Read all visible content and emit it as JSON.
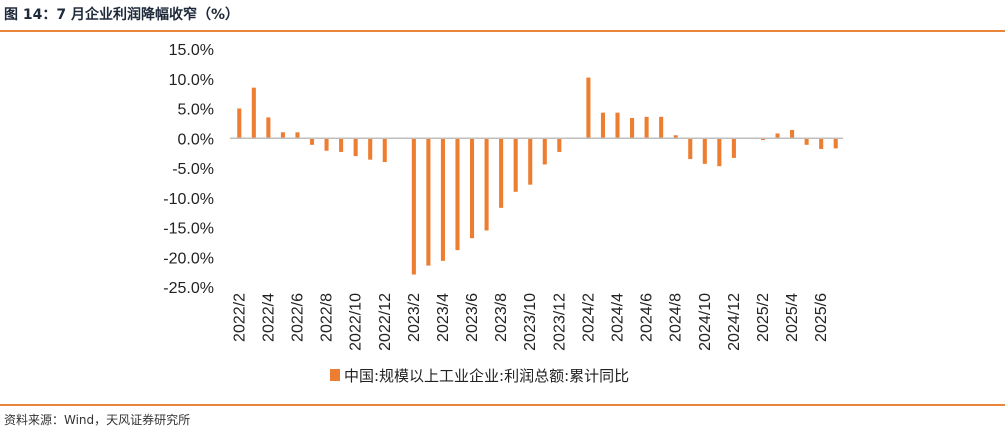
{
  "header": {
    "title": "图 14：7 月企业利润降幅收窄（%）"
  },
  "footer": {
    "source": "资料来源：Wind，天风证券研究所"
  },
  "colors": {
    "accent": "#e9853b",
    "bar": "#ed7d31",
    "axis": "#bfbfbf"
  },
  "chart_data": {
    "type": "bar",
    "title": "",
    "xlabel": "",
    "ylabel": "",
    "ylim": [
      -25,
      15
    ],
    "yticks": [
      15,
      10,
      5,
      0,
      -5,
      -10,
      -15,
      -20,
      -25
    ],
    "ytick_labels": [
      "15.0%",
      "10.0%",
      "5.0%",
      "0.0%",
      "-5.0%",
      "-10.0%",
      "-15.0%",
      "-20.0%",
      "-25.0%"
    ],
    "categories": [
      "2022/2",
      "2022/3",
      "2022/4",
      "2022/5",
      "2022/6",
      "2022/7",
      "2022/8",
      "2022/9",
      "2022/10",
      "2022/11",
      "2022/12",
      "2023/1",
      "2023/2",
      "2023/3",
      "2023/4",
      "2023/5",
      "2023/6",
      "2023/7",
      "2023/8",
      "2023/9",
      "2023/10",
      "2023/11",
      "2023/12",
      "2024/1",
      "2024/2",
      "2024/3",
      "2024/4",
      "2024/5",
      "2024/6",
      "2024/7",
      "2024/8",
      "2024/9",
      "2024/10",
      "2024/11",
      "2024/12",
      "2025/1",
      "2025/2",
      "2025/3",
      "2025/4",
      "2025/5",
      "2025/6",
      "2025/7"
    ],
    "xtick_labels": [
      "2022/2",
      "2022/4",
      "2022/6",
      "2022/8",
      "2022/10",
      "2022/12",
      "2023/2",
      "2023/4",
      "2023/6",
      "2023/8",
      "2023/10",
      "2023/12",
      "2024/2",
      "2024/4",
      "2024/6",
      "2024/8",
      "2024/10",
      "2024/12",
      "2025/2",
      "2025/4",
      "2025/6"
    ],
    "series": [
      {
        "name": "中国:规模以上工业企业:利润总额:累计同比",
        "values": [
          5.0,
          8.5,
          3.5,
          1.0,
          1.0,
          -1.1,
          -2.1,
          -2.3,
          -3.0,
          -3.6,
          -4.0,
          null,
          -22.9,
          -21.4,
          -20.6,
          -18.8,
          -16.8,
          -15.5,
          -11.7,
          -9.0,
          -7.8,
          -4.4,
          -2.3,
          null,
          10.2,
          4.3,
          4.3,
          3.4,
          3.6,
          3.6,
          0.5,
          -3.5,
          -4.3,
          -4.7,
          -3.3,
          null,
          -0.3,
          0.8,
          1.4,
          -1.1,
          -1.8,
          -1.7
        ]
      }
    ],
    "legend": "bottom-center",
    "grid": false
  }
}
